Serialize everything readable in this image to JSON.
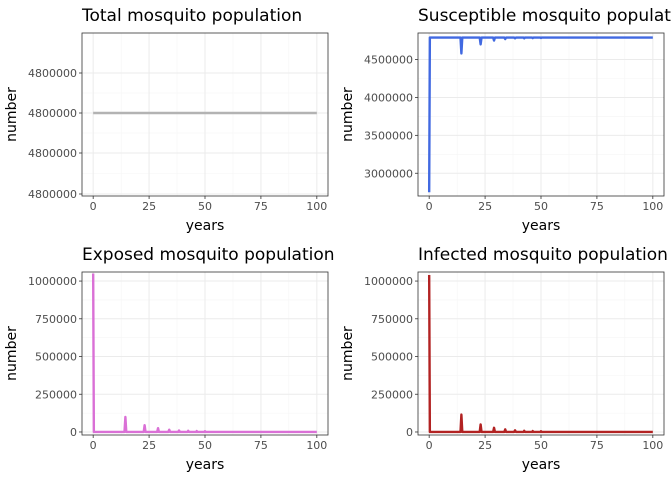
{
  "figure": {
    "background": "#ffffff",
    "panel_border": "#333333",
    "grid_major": "#ebebeb",
    "grid_minor": "#f5f5f5"
  },
  "chart_data": [
    {
      "id": "total",
      "type": "line",
      "title": "Total mosquito population",
      "xlabel": "years",
      "ylabel": "number",
      "color": "#b3b3b3",
      "xlim": [
        0,
        100
      ],
      "xticks": [
        0,
        25,
        50,
        75,
        100
      ],
      "ytick_labels": [
        "4800000",
        "4800000",
        "4800000",
        "4800000"
      ],
      "series": [
        {
          "x": [
            0,
            100
          ],
          "y": [
            4800000,
            4800000
          ]
        }
      ]
    },
    {
      "id": "susceptible",
      "type": "line",
      "title": "Susceptible mosquito population",
      "xlabel": "years",
      "ylabel": "number",
      "color": "#4169e1",
      "xlim": [
        0,
        100
      ],
      "ylim": [
        2700000,
        4850000
      ],
      "xticks": [
        0,
        25,
        50,
        75,
        100
      ],
      "yticks": [
        3000000,
        3500000,
        4000000,
        4500000
      ],
      "ytick_labels": [
        "3000000",
        "3500000",
        "4000000",
        "4500000"
      ],
      "series": [
        {
          "x": [
            0,
            0.3,
            0.6,
            14,
            14.4,
            14.8,
            22.6,
            23,
            23.4,
            28.6,
            29,
            29.4,
            33.6,
            34,
            34.4,
            38,
            38.4,
            38.8,
            42.2,
            42.5,
            42.8,
            46,
            46.3,
            46.6,
            49.7,
            50,
            50.3,
            100
          ],
          "y": [
            2750000,
            4790000,
            4790000,
            4790000,
            4580000,
            4790000,
            4790000,
            4700000,
            4790000,
            4790000,
            4750000,
            4790000,
            4790000,
            4770000,
            4790000,
            4790000,
            4780000,
            4790000,
            4790000,
            4780000,
            4790000,
            4790000,
            4782000,
            4790000,
            4790000,
            4784000,
            4790000,
            4790000
          ]
        }
      ]
    },
    {
      "id": "exposed",
      "type": "line",
      "title": "Exposed mosquito population",
      "xlabel": "years",
      "ylabel": "number",
      "color": "#da70d6",
      "xlim": [
        0,
        100
      ],
      "ylim": [
        -20000,
        1060000
      ],
      "xticks": [
        0,
        25,
        50,
        75,
        100
      ],
      "yticks": [
        0,
        250000,
        500000,
        750000,
        1000000
      ],
      "ytick_labels": [
        "0",
        "250000",
        "500000",
        "750000",
        "1000000"
      ],
      "series": [
        {
          "x": [
            0,
            0.3,
            0.6,
            14,
            14.4,
            14.8,
            22.6,
            23,
            23.4,
            28.6,
            29,
            29.4,
            33.6,
            34,
            34.4,
            38,
            38.4,
            38.8,
            42.2,
            42.5,
            42.8,
            46,
            46.3,
            46.6,
            49.7,
            50,
            50.3,
            100
          ],
          "y": [
            1050000,
            0,
            0,
            0,
            100000,
            0,
            0,
            45000,
            0,
            0,
            25000,
            0,
            0,
            15000,
            0,
            0,
            10000,
            0,
            0,
            8000,
            0,
            0,
            6000,
            0,
            0,
            5000,
            0,
            0
          ]
        }
      ]
    },
    {
      "id": "infected",
      "type": "line",
      "title": "Infected mosquito population",
      "xlabel": "years",
      "ylabel": "number",
      "color": "#b22222",
      "xlim": [
        0,
        100
      ],
      "ylim": [
        -20000,
        1060000
      ],
      "xticks": [
        0,
        25,
        50,
        75,
        100
      ],
      "yticks": [
        0,
        250000,
        500000,
        750000,
        1000000
      ],
      "ytick_labels": [
        "0",
        "250000",
        "500000",
        "750000",
        "1000000"
      ],
      "series": [
        {
          "x": [
            0,
            0.3,
            0.6,
            14,
            14.4,
            14.8,
            22.6,
            23,
            23.4,
            28.6,
            29,
            29.4,
            33.6,
            34,
            34.4,
            38,
            38.4,
            38.8,
            42.2,
            42.5,
            42.8,
            46,
            46.3,
            46.6,
            49.7,
            50,
            50.3,
            100
          ],
          "y": [
            1040000,
            0,
            0,
            0,
            115000,
            0,
            0,
            50000,
            0,
            0,
            28000,
            0,
            0,
            17000,
            0,
            0,
            11000,
            0,
            0,
            8000,
            0,
            0,
            6000,
            0,
            0,
            5000,
            0,
            0
          ]
        }
      ]
    }
  ]
}
